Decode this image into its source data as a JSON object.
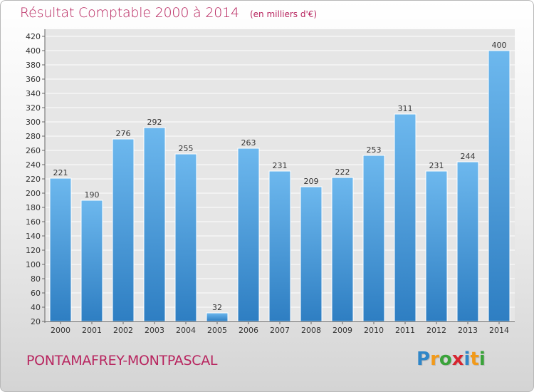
{
  "title": "Résultat Comptable 2000 à 2014",
  "subtitle": "(en milliers d'€)",
  "commune": "PONTAMAFREY-MONTPASCAL",
  "logo": {
    "letters": [
      "P",
      "r",
      "o",
      "x",
      "i",
      "t",
      "i"
    ],
    "colors": [
      "#2f86c8",
      "#f29a1a",
      "#3aa33a",
      "#d7242f",
      "#2f86c8",
      "#f29a1a",
      "#3aa33a"
    ]
  },
  "colors": {
    "bar_light": "#6db8ee",
    "bar_dark": "#2e7ec2",
    "title": "#b8255f",
    "axis": "#555555"
  },
  "chart_data": {
    "type": "bar",
    "categories": [
      "2000",
      "2001",
      "2002",
      "2003",
      "2004",
      "2005",
      "2006",
      "2007",
      "2008",
      "2009",
      "2010",
      "2011",
      "2012",
      "2013",
      "2014"
    ],
    "values": [
      221,
      190,
      276,
      292,
      255,
      32,
      263,
      231,
      209,
      222,
      253,
      311,
      231,
      244,
      400
    ],
    "data_labels": [
      "221",
      "190",
      "276",
      "292",
      "255",
      "32",
      "263",
      "231",
      "209",
      "222",
      "253",
      "311",
      "231",
      "244",
      "400"
    ],
    "title": "Résultat Comptable 2000 à 2014",
    "subtitle": "(en milliers d'€)",
    "ylim": [
      20,
      420
    ],
    "yticks": [
      "20",
      "40",
      "60",
      "80",
      "100",
      "120",
      "140",
      "160",
      "180",
      "200",
      "220",
      "240",
      "260",
      "280",
      "300",
      "320",
      "340",
      "360",
      "380",
      "400",
      "420"
    ],
    "grid": true,
    "legend": "none"
  }
}
